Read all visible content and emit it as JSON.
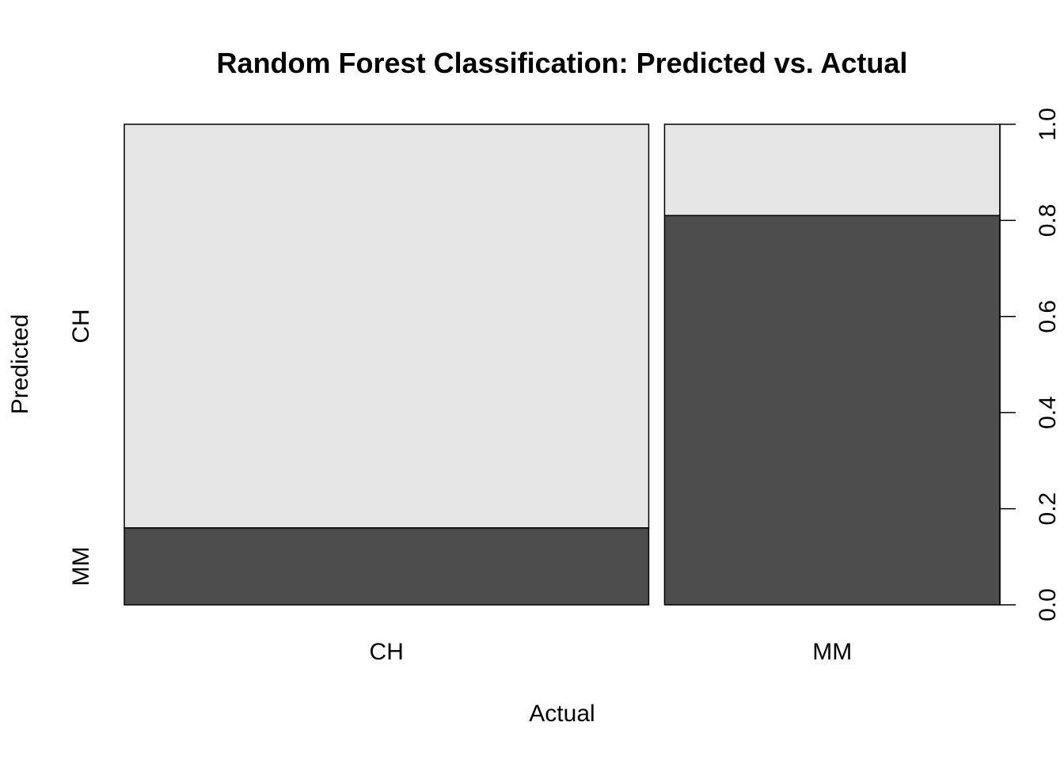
{
  "chart_data": {
    "type": "mosaic",
    "title": "Random Forest Classification: Predicted vs. Actual",
    "xlabel": "Actual",
    "ylabel": "Predicted",
    "x_categories": [
      "CH",
      "MM"
    ],
    "y_categories": [
      "CH",
      "MM"
    ],
    "column_widths": [
      0.61,
      0.39
    ],
    "columns": [
      {
        "actual": "CH",
        "predicted_CH": 0.84,
        "predicted_MM": 0.16
      },
      {
        "actual": "MM",
        "predicted_CH": 0.19,
        "predicted_MM": 0.81
      }
    ],
    "right_axis_ticks": [
      "0.0",
      "0.2",
      "0.4",
      "0.6",
      "0.8",
      "1.0"
    ],
    "ylim": [
      0,
      1
    ],
    "colors": {
      "predicted_CH": "#e6e6e6",
      "predicted_MM": "#4d4d4d",
      "border": "#000000"
    }
  }
}
